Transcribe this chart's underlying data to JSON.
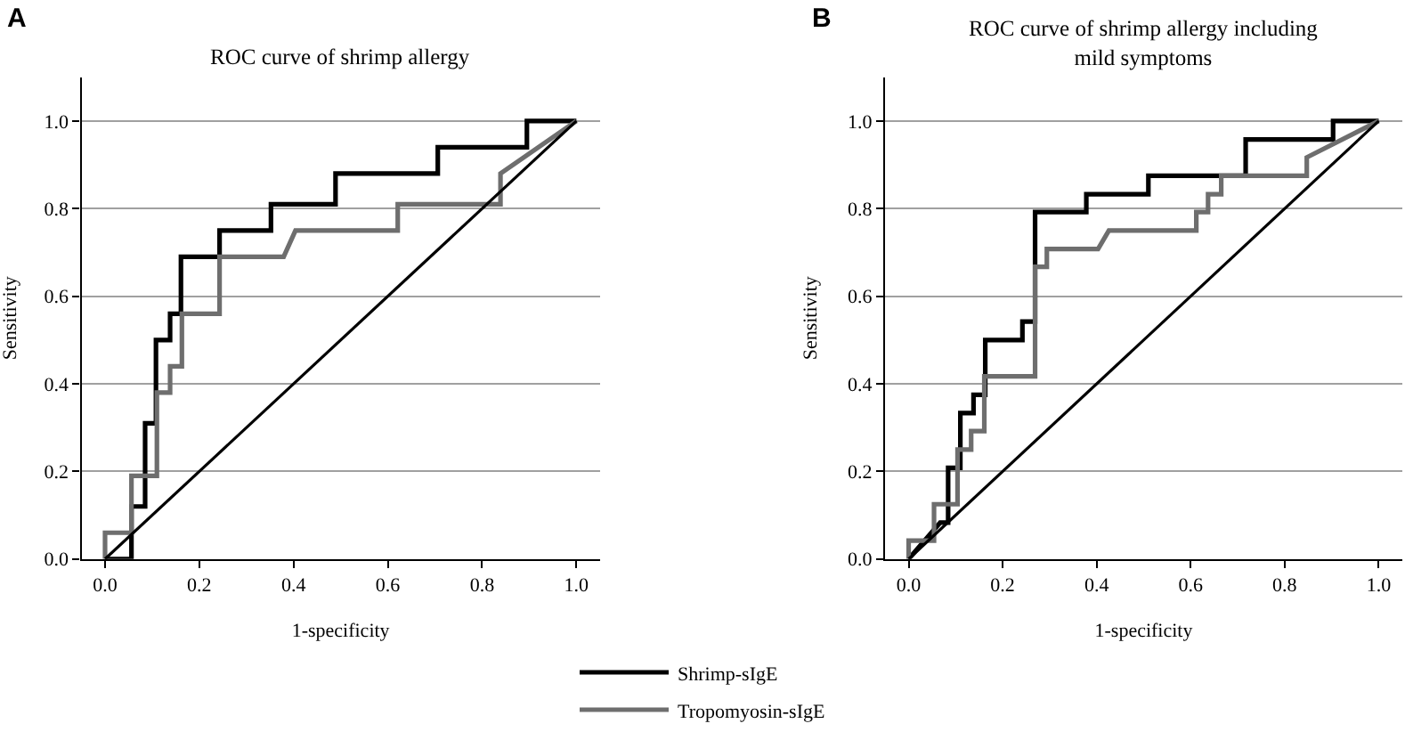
{
  "chart_data": [
    {
      "type": "line",
      "title": "ROC curve of shrimp allergy",
      "xlabel": "1-specificity",
      "ylabel": "Sensitivity",
      "annotations": [
        "A"
      ],
      "xlim": [
        -0.05,
        1.05
      ],
      "ylim": [
        0,
        1.1
      ],
      "xticks": [
        {
          "value": 0,
          "label": "0.0"
        },
        {
          "value": 0.2,
          "label": "0.2"
        },
        {
          "value": 0.4,
          "label": "0.4"
        },
        {
          "value": 0.6,
          "label": "0.6"
        },
        {
          "value": 0.8,
          "label": "0.8"
        },
        {
          "value": 1,
          "label": "1.0"
        }
      ],
      "yticks": [
        {
          "value": 0,
          "label": "0.0"
        },
        {
          "value": 0.2,
          "label": "0.2"
        },
        {
          "value": 0.4,
          "label": "0.4"
        },
        {
          "value": 0.6,
          "label": "0.6"
        },
        {
          "value": 0.8,
          "label": "0.8"
        },
        {
          "value": 1,
          "label": "1.0"
        }
      ],
      "grid": "y",
      "legend": "bottom",
      "marker": "none",
      "line_style": "solid",
      "series": [
        {
          "name": "Shrimp-sIgE",
          "color": "#000000",
          "x": [
            0,
            0.056,
            0.056,
            0.085,
            0.085,
            0.108,
            0.108,
            0.138,
            0.138,
            0.161,
            0.161,
            0.243,
            0.243,
            0.352,
            0.352,
            0.489,
            0.489,
            0.706,
            0.706,
            0.895,
            0.895,
            1
          ],
          "values": [
            0,
            0,
            0.12,
            0.12,
            0.31,
            0.31,
            0.5,
            0.5,
            0.56,
            0.56,
            0.69,
            0.69,
            0.75,
            0.75,
            0.81,
            0.81,
            0.88,
            0.88,
            0.94,
            0.94,
            1,
            1
          ]
        },
        {
          "name": "Tropomyosin-sIgE",
          "color": "#6e6e6e",
          "x": [
            0,
            0,
            0.056,
            0.056,
            0.11,
            0.11,
            0.138,
            0.138,
            0.163,
            0.163,
            0.243,
            0.243,
            0.379,
            0.404,
            0.621,
            0.621,
            0.839,
            0.839,
            1
          ],
          "values": [
            0,
            0.06,
            0.06,
            0.19,
            0.19,
            0.38,
            0.38,
            0.44,
            0.44,
            0.56,
            0.56,
            0.69,
            0.69,
            0.75,
            0.75,
            0.81,
            0.81,
            0.88,
            1
          ]
        },
        {
          "color": "#000000",
          "x": [
            0,
            1
          ],
          "values": [
            0,
            1
          ]
        }
      ]
    },
    {
      "type": "line",
      "title": "ROC curve of shrimp allergy including mild symptoms",
      "xlabel": "1-specificity",
      "ylabel": "Sensitivity",
      "annotations": [
        "B"
      ],
      "xlim": [
        -0.05,
        1.05
      ],
      "ylim": [
        0,
        1.1
      ],
      "xticks": [
        {
          "value": 0,
          "label": "0.0"
        },
        {
          "value": 0.2,
          "label": "0.2"
        },
        {
          "value": 0.4,
          "label": "0.4"
        },
        {
          "value": 0.6,
          "label": "0.6"
        },
        {
          "value": 0.8,
          "label": "0.8"
        },
        {
          "value": 1,
          "label": "1.0"
        }
      ],
      "yticks": [
        {
          "value": 0,
          "label": "0.0"
        },
        {
          "value": 0.2,
          "label": "0.2"
        },
        {
          "value": 0.4,
          "label": "0.4"
        },
        {
          "value": 0.6,
          "label": "0.6"
        },
        {
          "value": 0.8,
          "label": "0.8"
        },
        {
          "value": 1,
          "label": "1.0"
        }
      ],
      "grid": "y",
      "legend": "bottom",
      "marker": "none",
      "line_style": "solid",
      "series": [
        {
          "name": "Shrimp-sIgE",
          "color": "#000000",
          "x": [
            0,
            0.067,
            0.084,
            0.084,
            0.11,
            0.11,
            0.138,
            0.138,
            0.163,
            0.163,
            0.242,
            0.242,
            0.269,
            0.269,
            0.378,
            0.378,
            0.51,
            0.51,
            0.717,
            0.717,
            0.903,
            0.903,
            1
          ],
          "values": [
            0,
            0.083,
            0.083,
            0.208,
            0.208,
            0.333,
            0.333,
            0.375,
            0.375,
            0.5,
            0.5,
            0.542,
            0.542,
            0.792,
            0.792,
            0.833,
            0.833,
            0.875,
            0.875,
            0.958,
            0.958,
            1,
            1
          ]
        },
        {
          "name": "Tropomyosin-sIgE",
          "color": "#6e6e6e",
          "x": [
            0,
            0,
            0.054,
            0.054,
            0.104,
            0.104,
            0.133,
            0.133,
            0.161,
            0.161,
            0.269,
            0.269,
            0.294,
            0.294,
            0.403,
            0.426,
            0.612,
            0.612,
            0.637,
            0.637,
            0.665,
            0.665,
            0.847,
            0.847,
            1
          ],
          "values": [
            0,
            0.042,
            0.042,
            0.125,
            0.125,
            0.25,
            0.25,
            0.292,
            0.292,
            0.417,
            0.417,
            0.667,
            0.667,
            0.708,
            0.708,
            0.75,
            0.75,
            0.792,
            0.792,
            0.833,
            0.833,
            0.875,
            0.875,
            0.917,
            1
          ]
        },
        {
          "color": "#000000",
          "x": [
            0,
            1
          ],
          "values": [
            0,
            1
          ]
        }
      ]
    }
  ]
}
